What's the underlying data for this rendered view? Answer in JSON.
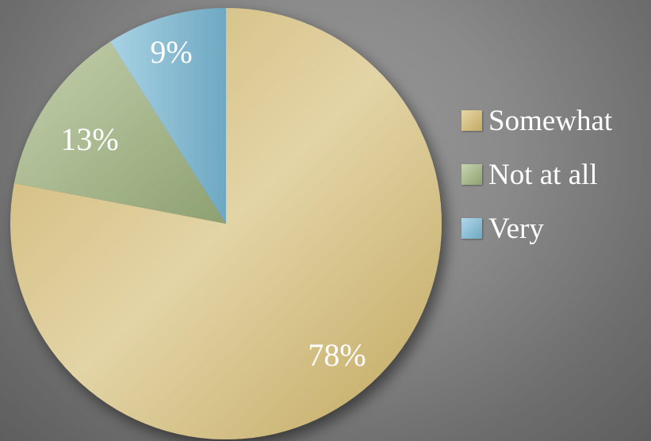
{
  "chart_data": {
    "type": "pie",
    "title": "",
    "slices": [
      {
        "name": "Somewhat",
        "value": 78,
        "label": "78%",
        "color": "#d9c48c"
      },
      {
        "name": "Not at all",
        "value": 13,
        "label": "13%",
        "color": "#a9b98f"
      },
      {
        "name": "Very",
        "value": 9,
        "label": "9%",
        "color": "#8fbcd0"
      }
    ],
    "start_angle_deg": 0,
    "direction": "clockwise",
    "legend_position": "right"
  },
  "legend": {
    "items": [
      {
        "label": "Somewhat",
        "color": "#d9c48c"
      },
      {
        "label": "Not at all",
        "color": "#a9b98f"
      },
      {
        "label": "Very",
        "color": "#8fbcd0"
      }
    ]
  }
}
